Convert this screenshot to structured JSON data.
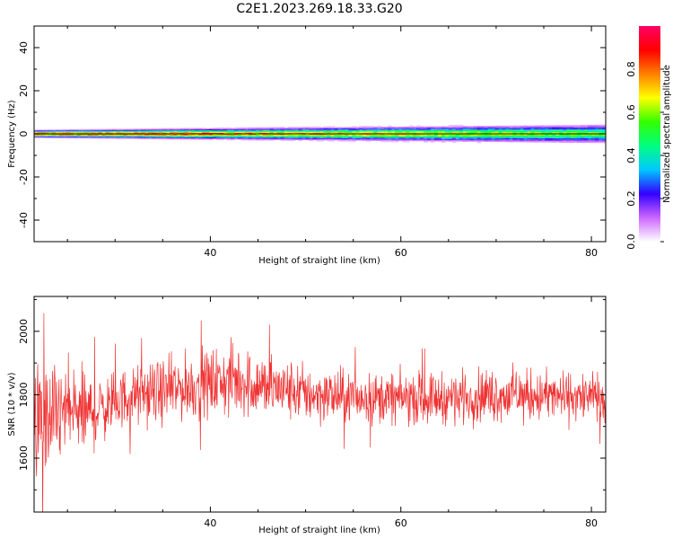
{
  "title": "C2E1.2023.269.18.33.G20",
  "chart_data": [
    {
      "type": "heatmap",
      "xlabel": "Height of straight line (km)",
      "ylabel": "Frequency (Hz)",
      "xlim": [
        21.5,
        81.5
      ],
      "ylim": [
        -50,
        50
      ],
      "x_ticks": [
        40,
        60,
        80
      ],
      "y_ticks": [
        -40,
        -20,
        0,
        20,
        40
      ],
      "band": {
        "center_hz": 0,
        "x_start": 21.5,
        "x_end": 81.5,
        "halfwidth_hz_start": 2,
        "halfwidth_hz_end": 5,
        "peak_amplitude_start": 0.9,
        "peak_amplitude_end": 0.55
      },
      "colorbar": {
        "label": "Normalized spectral amplitude",
        "range": [
          0,
          1
        ],
        "ticks": [
          0.0,
          0.2,
          0.4,
          0.6,
          0.8
        ],
        "tick_labels": [
          "0.0",
          "0.2",
          "0.4",
          "0.6",
          "0.8"
        ],
        "colormap": [
          "#ffffff",
          "#cc66ff",
          "#3300ff",
          "#00c8ff",
          "#00ff80",
          "#33ff00",
          "#ffff00",
          "#ff8000",
          "#ff0000",
          "#ff0066"
        ]
      }
    },
    {
      "type": "line",
      "xlabel": "Height of straight line (km)",
      "ylabel": "SNR (10 * v/v)",
      "xlim": [
        21.5,
        81.5
      ],
      "ylim": [
        1430,
        2110
      ],
      "x_ticks": [
        40,
        60,
        80
      ],
      "y_ticks": [
        1600,
        1800,
        2000
      ],
      "color": "#f03232",
      "profile": {
        "x": [
          21.5,
          23,
          25,
          27,
          29,
          31,
          33,
          35,
          37,
          39,
          41,
          43,
          45,
          47,
          50,
          53,
          56,
          60,
          65,
          70,
          75,
          81.5
        ],
        "mean": [
          1700,
          1720,
          1750,
          1740,
          1760,
          1790,
          1800,
          1810,
          1820,
          1830,
          1840,
          1845,
          1830,
          1820,
          1805,
          1795,
          1790,
          1790,
          1790,
          1800,
          1795,
          1790
        ],
        "spread": [
          150,
          140,
          120,
          110,
          80,
          75,
          75,
          80,
          85,
          85,
          90,
          95,
          85,
          80,
          75,
          70,
          65,
          65,
          65,
          70,
          65,
          60
        ]
      }
    }
  ]
}
